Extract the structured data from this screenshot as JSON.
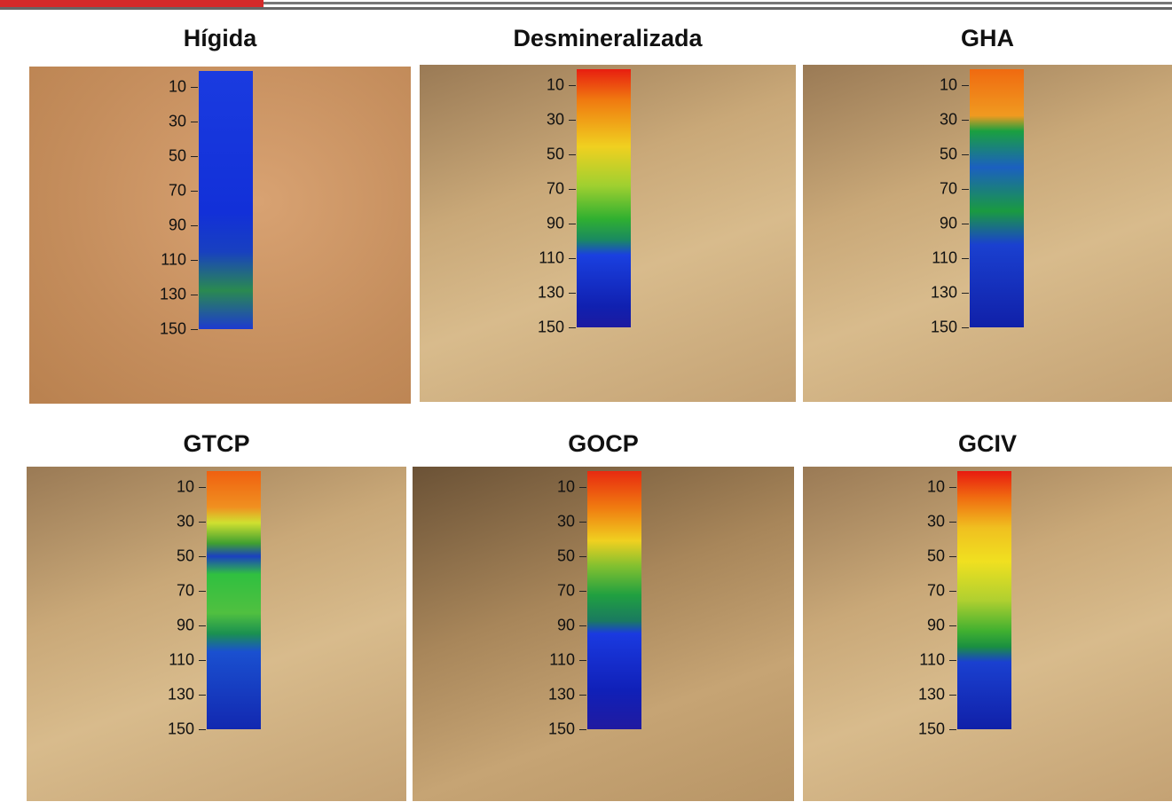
{
  "panels": [
    {
      "title": "Hígida",
      "ticks": [
        10,
        30,
        50,
        70,
        90,
        110,
        130,
        150
      ]
    },
    {
      "title": "Desmineralizada",
      "ticks": [
        10,
        30,
        50,
        70,
        90,
        110,
        130,
        150
      ]
    },
    {
      "title": "GHA",
      "ticks": [
        10,
        30,
        50,
        70,
        90,
        110,
        130,
        150
      ]
    },
    {
      "title": "GTCP",
      "ticks": [
        10,
        30,
        50,
        70,
        90,
        110,
        130,
        150
      ]
    },
    {
      "title": "GOCP",
      "ticks": [
        10,
        30,
        50,
        70,
        90,
        110,
        130,
        150
      ]
    },
    {
      "title": "GCIV",
      "ticks": [
        10,
        30,
        50,
        70,
        90,
        110,
        130,
        150
      ]
    }
  ]
}
